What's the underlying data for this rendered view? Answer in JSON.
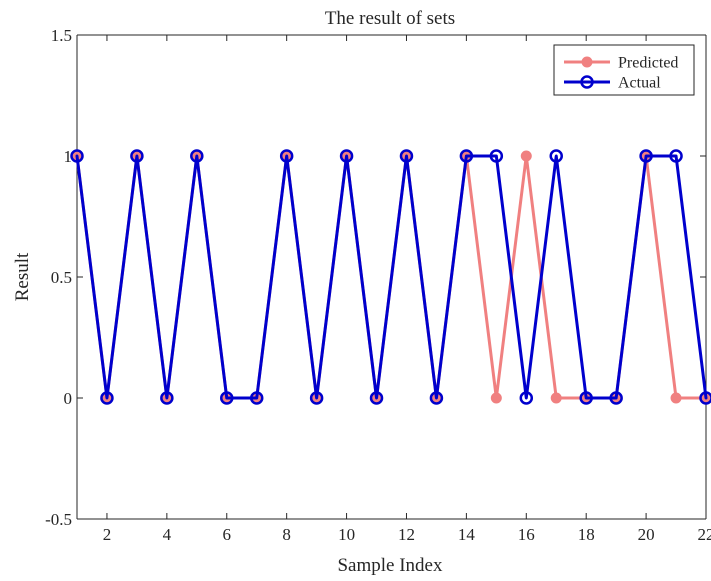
{
  "chart_data": {
    "type": "line",
    "title": "The result of sets",
    "xlabel": "Sample Index",
    "ylabel": "Result",
    "xlim": [
      1,
      22
    ],
    "ylim": [
      -0.5,
      1.5
    ],
    "x_ticks": [
      2,
      4,
      6,
      8,
      10,
      12,
      14,
      16,
      18,
      20,
      22
    ],
    "x_tick_labels": [
      "2",
      "4",
      "6",
      "8",
      "10",
      "12",
      "14",
      "16",
      "18",
      "20",
      "22"
    ],
    "y_ticks": [
      -0.5,
      0,
      0.5,
      1,
      1.5
    ],
    "y_tick_labels": [
      "-0.5",
      "0",
      "0.5",
      "1",
      "1.5"
    ],
    "grid": false,
    "legend_position": "top-right",
    "x": [
      1,
      2,
      3,
      4,
      5,
      6,
      7,
      8,
      9,
      10,
      11,
      12,
      13,
      14,
      15,
      16,
      17,
      18,
      19,
      20,
      21,
      22
    ],
    "series": [
      {
        "name": "Predicted",
        "color": "#f08080",
        "marker": "filled-circle",
        "values": [
          1,
          0,
          1,
          0,
          1,
          0,
          0,
          1,
          0,
          1,
          0,
          1,
          0,
          1,
          0,
          1,
          0,
          0,
          0,
          1,
          0,
          0
        ]
      },
      {
        "name": "Actual",
        "color": "#0000cd",
        "marker": "open-circle",
        "values": [
          1,
          0,
          1,
          0,
          1,
          0,
          0,
          1,
          0,
          1,
          0,
          1,
          0,
          1,
          1,
          0,
          1,
          0,
          0,
          1,
          1,
          0
        ]
      }
    ]
  }
}
